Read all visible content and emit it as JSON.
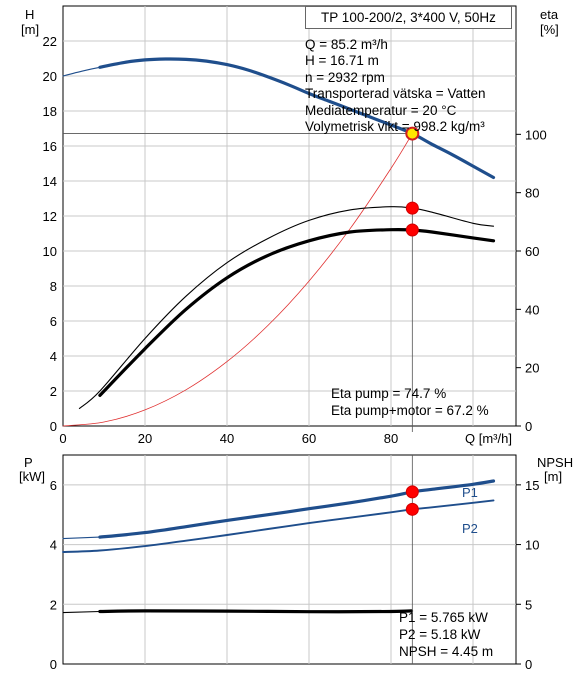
{
  "title": "TP 100-200/2, 3*400 V, 50Hz",
  "upper": {
    "left_axis": {
      "label": "H",
      "unit": "[m]",
      "ticks": [
        0,
        2,
        4,
        6,
        8,
        10,
        12,
        14,
        16,
        18,
        20,
        22
      ]
    },
    "right_axis": {
      "label": "eta",
      "unit": "[%]",
      "ticks": [
        0,
        20,
        40,
        60,
        80,
        100
      ]
    },
    "x_axis": {
      "label": "Q [m³/h]",
      "ticks": [
        0,
        20,
        40,
        60,
        80
      ]
    },
    "info": [
      "Q = 85.2 m³/h",
      "H = 16.71 m",
      "n = 2932 rpm",
      "Transporterad vätska = Vatten",
      "Mediatemperatur = 20 °C",
      "Volymetrisk vikt = 998.2 kg/m³"
    ],
    "eta_text": [
      "Eta pump = 74.7 %",
      "Eta pump+motor = 67.2 %"
    ]
  },
  "lower": {
    "left_axis": {
      "label": "P",
      "unit": "[kW]",
      "ticks": [
        0,
        2,
        4,
        6
      ]
    },
    "right_axis": {
      "label": "NPSH",
      "unit": "[m]",
      "ticks": [
        0,
        5,
        10,
        15
      ]
    },
    "series_labels": {
      "p1": "P1",
      "p2": "P2"
    },
    "info": [
      "P1 = 5.765 kW",
      "P2 = 5.18 kW",
      "NPSH = 4.45 m"
    ]
  },
  "chart_data": [
    {
      "type": "line",
      "title": "TP 100-200/2, 3*400 V, 50Hz",
      "xlabel": "Q [m³/h]",
      "ylabel": "H [m]",
      "y2label": "eta [%]",
      "xlim": [
        0,
        110
      ],
      "ylim": [
        0,
        24
      ],
      "y2lim": [
        0,
        144
      ],
      "grid": true,
      "series": [
        {
          "axis": "left",
          "color": "#1f4e8c",
          "style": "thick",
          "x": [
            9,
            15,
            20,
            25,
            30,
            35,
            40,
            45,
            50,
            55,
            60,
            65,
            70,
            75,
            80,
            85.2,
            90,
            95,
            100,
            105
          ],
          "y": [
            20.5,
            20.78,
            20.92,
            20.97,
            20.95,
            20.85,
            20.65,
            20.35,
            19.95,
            19.5,
            19.0,
            18.55,
            18.1,
            17.65,
            17.2,
            16.71,
            16.1,
            15.5,
            14.85,
            14.2
          ]
        },
        {
          "axis": "left",
          "color": "#1f4e8c",
          "style": "thin",
          "x": [
            0,
            5,
            9
          ],
          "y": [
            20.0,
            20.3,
            20.5
          ]
        },
        {
          "axis": "left",
          "color": "#e03030",
          "style": "thin",
          "x": [
            0,
            10,
            20,
            30,
            40,
            50,
            60,
            70,
            80,
            85.2
          ],
          "y": [
            0,
            0.23,
            0.92,
            2.07,
            3.68,
            5.75,
            8.28,
            11.27,
            14.72,
            16.71
          ]
        },
        {
          "name": "Eta pump",
          "axis": "right",
          "color": "#000000",
          "style": "thin",
          "x": [
            4,
            9,
            20,
            30,
            40,
            50,
            60,
            70,
            80,
            85.2,
            90,
            100,
            105
          ],
          "y": [
            6,
            12,
            30,
            44.5,
            56,
            64.3,
            70.5,
            74.1,
            75.2,
            74.7,
            73.3,
            69.5,
            68.5
          ]
        },
        {
          "name": "Eta pump+motor",
          "axis": "right",
          "color": "#000000",
          "style": "thick",
          "x": [
            9,
            20,
            30,
            40,
            50,
            60,
            70,
            80,
            85.2,
            90,
            100,
            105
          ],
          "y": [
            10.5,
            26.5,
            40,
            50.8,
            58.5,
            63.5,
            66.5,
            67.3,
            67.2,
            66.5,
            64.5,
            63.5
          ]
        }
      ],
      "markers": [
        {
          "axis": "left",
          "x": 85.2,
          "y": 16.71,
          "style": "yellow"
        },
        {
          "axis": "right",
          "x": 85.2,
          "y": 74.7,
          "style": "red"
        },
        {
          "axis": "right",
          "x": 85.2,
          "y": 67.2,
          "style": "red"
        }
      ]
    },
    {
      "type": "line",
      "ylabel": "P [kW]",
      "y2label": "NPSH [m]",
      "xlim": [
        0,
        110
      ],
      "ylim": [
        0,
        7
      ],
      "y2lim": [
        0,
        17.5
      ],
      "grid": true,
      "series": [
        {
          "name": "P1",
          "axis": "left",
          "color": "#1f4e8c",
          "style": "thick",
          "x": [
            9,
            20,
            30,
            40,
            50,
            60,
            70,
            80,
            85.2,
            90,
            100,
            105
          ],
          "y": [
            4.25,
            4.4,
            4.6,
            4.81,
            5.0,
            5.2,
            5.4,
            5.62,
            5.765,
            5.85,
            6.02,
            6.13
          ]
        },
        {
          "axis": "left",
          "color": "#1f4e8c",
          "style": "thin",
          "x": [
            0,
            9
          ],
          "y": [
            4.2,
            4.25
          ]
        },
        {
          "name": "P2",
          "axis": "left",
          "color": "#1f4e8c",
          "style": "medium",
          "x": [
            0,
            9,
            20,
            30,
            40,
            50,
            60,
            70,
            80,
            85.2,
            90,
            100,
            105
          ],
          "y": [
            3.75,
            3.8,
            3.95,
            4.13,
            4.32,
            4.52,
            4.72,
            4.9,
            5.08,
            5.18,
            5.25,
            5.4,
            5.48
          ]
        },
        {
          "name": "NPSH",
          "axis": "right",
          "color": "#000000",
          "style": "thick",
          "x": [
            9,
            20,
            40,
            60,
            80,
            85
          ],
          "y": [
            4.4,
            4.45,
            4.43,
            4.38,
            4.4,
            4.45
          ]
        },
        {
          "axis": "right",
          "color": "#000000",
          "style": "thin",
          "x": [
            0,
            9
          ],
          "y": [
            4.3,
            4.4
          ]
        }
      ],
      "markers": [
        {
          "axis": "left",
          "x": 85.2,
          "y": 5.765,
          "style": "red"
        },
        {
          "axis": "left",
          "x": 85.2,
          "y": 5.18,
          "style": "red"
        }
      ]
    }
  ]
}
